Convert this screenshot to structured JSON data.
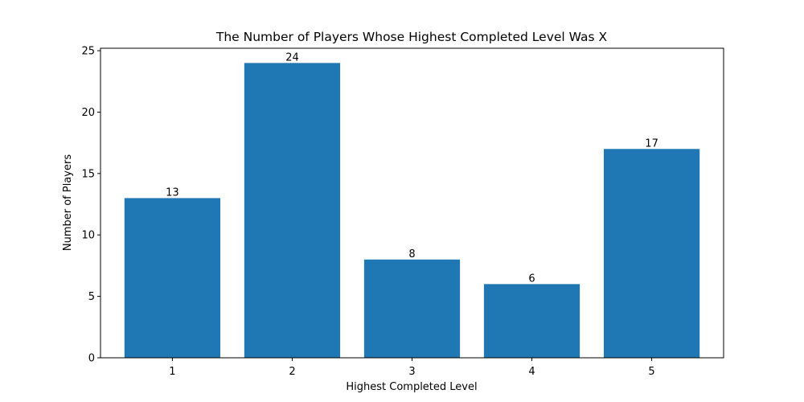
{
  "chart_data": {
    "type": "bar",
    "title": "The Number of Players Whose Highest Completed Level Was X",
    "xlabel": "Highest Completed Level",
    "ylabel": "Number of Players",
    "categories": [
      "1",
      "2",
      "3",
      "4",
      "5"
    ],
    "values": [
      13,
      24,
      8,
      6,
      17
    ],
    "data_labels": [
      "13",
      "24",
      "8",
      "6",
      "17"
    ],
    "ylim": [
      0,
      25.2
    ],
    "yticks": [
      0,
      5,
      10,
      15,
      20,
      25
    ],
    "ytick_labels": [
      "0",
      "5",
      "10",
      "15",
      "20",
      "25"
    ],
    "bar_color": "#1f77b4",
    "grid": false,
    "legend": "none"
  }
}
